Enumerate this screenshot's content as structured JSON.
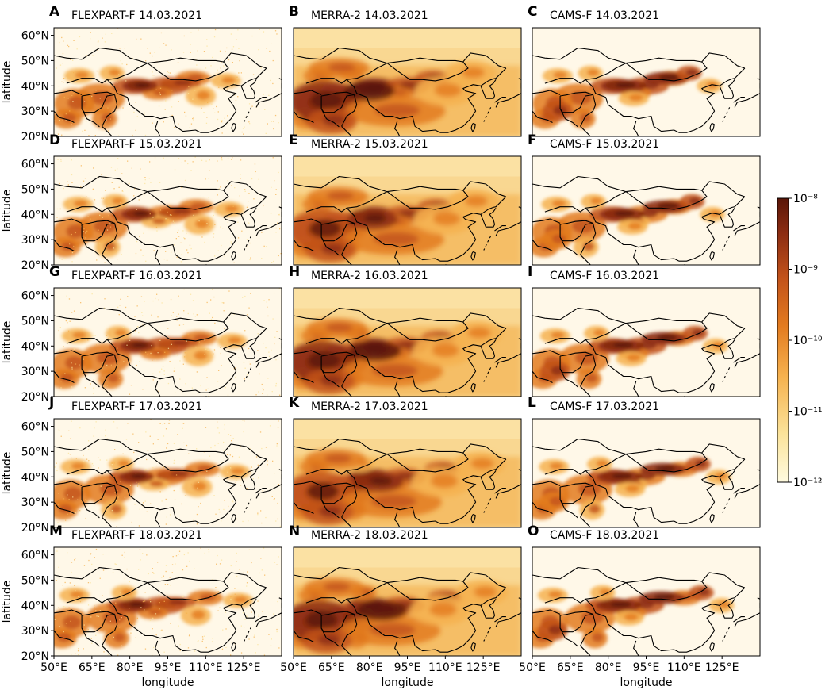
{
  "figure": {
    "ylabel": "latitude",
    "xlabel": "longitude",
    "xticks": [
      "50°E",
      "65°E",
      "80°E",
      "95°E",
      "110°E",
      "125°E"
    ],
    "yticks": [
      "20°N",
      "30°N",
      "40°N",
      "50°N",
      "60°N"
    ],
    "colorbar": {
      "ticks": [
        "10⁻¹²",
        "10⁻¹¹",
        "10⁻¹⁰",
        "10⁻⁹",
        "10⁻⁸"
      ],
      "colors": [
        "#fffbe0",
        "#fbe39a",
        "#f6b24f",
        "#e37b1f",
        "#c2521a",
        "#8b2c12",
        "#5a1608"
      ]
    }
  },
  "panels": [
    {
      "letter": "A",
      "title": "FLEXPART-F 14.03.2021"
    },
    {
      "letter": "B",
      "title": "MERRA-2 14.03.2021"
    },
    {
      "letter": "C",
      "title": "CAMS-F 14.03.2021"
    },
    {
      "letter": "D",
      "title": "FLEXPART-F 15.03.2021"
    },
    {
      "letter": "E",
      "title": "MERRA-2 15.03.2021"
    },
    {
      "letter": "F",
      "title": "CAMS-F 15.03.2021"
    },
    {
      "letter": "G",
      "title": "FLEXPART-F 16.03.2021"
    },
    {
      "letter": "H",
      "title": "MERRA-2 16.03.2021"
    },
    {
      "letter": "I",
      "title": "CAMS-F 16.03.2021"
    },
    {
      "letter": "J",
      "title": "FLEXPART-F 17.03.2021"
    },
    {
      "letter": "K",
      "title": "MERRA-2 17.03.2021"
    },
    {
      "letter": "L",
      "title": "CAMS-F 17.03.2021"
    },
    {
      "letter": "M",
      "title": "FLEXPART-F 18.03.2021"
    },
    {
      "letter": "N",
      "title": "MERRA-2 18.03.2021"
    },
    {
      "letter": "O",
      "title": "CAMS-F 18.03.2021"
    }
  ],
  "chart_data": {
    "type": "heatmap",
    "xlabel": "longitude",
    "ylabel": "latitude",
    "xlim": [
      50,
      140
    ],
    "ylim": [
      20,
      63
    ],
    "x_ticks": [
      50,
      65,
      80,
      95,
      110,
      125
    ],
    "y_ticks": [
      20,
      30,
      40,
      50,
      60
    ],
    "colorbar": {
      "scale": "log",
      "range": [
        1e-12,
        1e-08
      ]
    },
    "models": [
      "FLEXPART-F",
      "MERRA-2",
      "CAMS-F"
    ],
    "dates": [
      "14.03.2021",
      "15.03.2021",
      "16.03.2021",
      "17.03.2021",
      "18.03.2021"
    ]
  }
}
